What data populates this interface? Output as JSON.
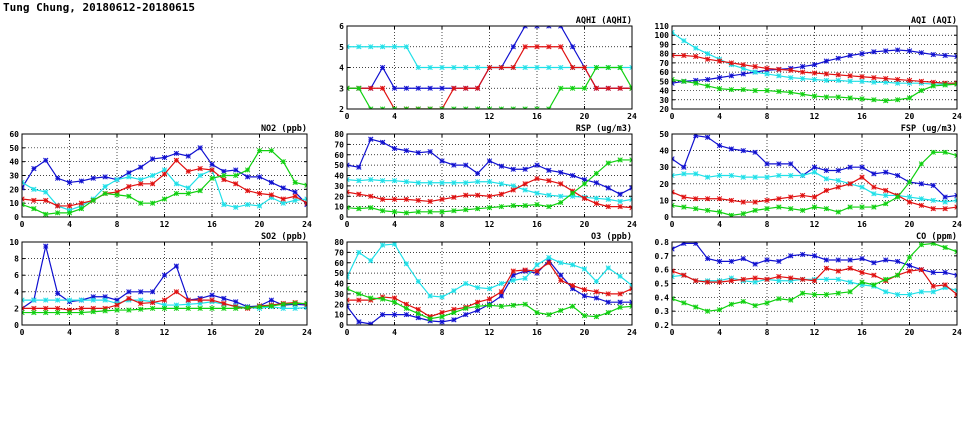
{
  "page": {
    "title": "Tung Chung, 20180612-20180615"
  },
  "series_colors": {
    "blue": "#1010d0",
    "cyan": "#20e0e8",
    "red": "#e01010",
    "green": "#10d010"
  },
  "chart_data": [
    {
      "id": "aqhi",
      "type": "line",
      "title": "AQHI (AQHI)",
      "xlim": [
        0,
        24
      ],
      "xticks": [
        0,
        4,
        8,
        12,
        16,
        20,
        24
      ],
      "ylim": [
        2,
        6
      ],
      "yticks": [
        2,
        3,
        4,
        5,
        6
      ],
      "series": [
        {
          "name": "blue",
          "values": [
            3,
            3,
            3,
            4,
            3,
            3,
            3,
            3,
            3,
            3,
            3,
            3,
            4,
            4,
            5,
            6,
            6,
            6,
            6,
            5,
            4,
            3,
            3,
            3,
            3
          ]
        },
        {
          "name": "cyan",
          "values": [
            5,
            5,
            5,
            5,
            5,
            5,
            4,
            4,
            4,
            4,
            4,
            4,
            4,
            4,
            4,
            4,
            4,
            4,
            4,
            4,
            4,
            4,
            4,
            4,
            4
          ]
        },
        {
          "name": "red",
          "values": [
            3,
            3,
            3,
            3,
            2,
            2,
            2,
            2,
            2,
            3,
            3,
            3,
            4,
            4,
            4,
            5,
            5,
            5,
            5,
            4,
            4,
            3,
            3,
            3,
            3
          ]
        },
        {
          "name": "green",
          "values": [
            3,
            3,
            2,
            2,
            2,
            2,
            2,
            2,
            2,
            2,
            2,
            2,
            2,
            2,
            2,
            2,
            2,
            2,
            3,
            3,
            3,
            4,
            4,
            4,
            3
          ]
        }
      ]
    },
    {
      "id": "aqi",
      "type": "line",
      "title": "AQI (AQI)",
      "xlim": [
        0,
        24
      ],
      "xticks": [
        0,
        4,
        8,
        12,
        16,
        20,
        24
      ],
      "ylim": [
        20,
        110
      ],
      "yticks": [
        20,
        30,
        40,
        50,
        60,
        70,
        80,
        90,
        100,
        110
      ],
      "series": [
        {
          "name": "blue",
          "values": [
            48,
            50,
            51,
            52,
            54,
            56,
            58,
            60,
            62,
            63,
            64,
            66,
            68,
            72,
            75,
            78,
            80,
            82,
            83,
            84,
            83,
            81,
            79,
            78,
            77
          ]
        },
        {
          "name": "cyan",
          "values": [
            103,
            94,
            86,
            80,
            74,
            68,
            64,
            60,
            58,
            56,
            54,
            53,
            52,
            51,
            51,
            50,
            50,
            49,
            49,
            48,
            48,
            48,
            47,
            47,
            47
          ]
        },
        {
          "name": "red",
          "values": [
            78,
            78,
            77,
            74,
            72,
            70,
            68,
            66,
            64,
            63,
            62,
            60,
            59,
            58,
            57,
            56,
            55,
            54,
            53,
            52,
            51,
            50,
            49,
            48,
            48
          ]
        },
        {
          "name": "green",
          "values": [
            52,
            50,
            48,
            45,
            42,
            41,
            41,
            40,
            40,
            39,
            38,
            36,
            34,
            33,
            33,
            32,
            31,
            30,
            29,
            30,
            32,
            40,
            45,
            46,
            47
          ]
        }
      ]
    },
    {
      "id": "no2",
      "type": "line",
      "title": "NO2 (ppb)",
      "xlim": [
        0,
        24
      ],
      "xticks": [
        0,
        4,
        8,
        12,
        16,
        20,
        24
      ],
      "ylim": [
        0,
        60
      ],
      "yticks": [
        0,
        10,
        20,
        30,
        40,
        50,
        60
      ],
      "series": [
        {
          "name": "blue",
          "values": [
            21,
            35,
            41,
            28,
            25,
            26,
            28,
            29,
            27,
            32,
            36,
            42,
            43,
            46,
            44,
            50,
            38,
            33,
            34,
            29,
            29,
            25,
            21,
            18,
            9
          ]
        },
        {
          "name": "cyan",
          "values": [
            25,
            20,
            18,
            8,
            5,
            8,
            13,
            22,
            27,
            29,
            27,
            30,
            34,
            24,
            21,
            30,
            34,
            9,
            7,
            9,
            8,
            14,
            10,
            12,
            13
          ]
        },
        {
          "name": "red",
          "values": [
            13,
            12,
            12,
            8,
            8,
            10,
            12,
            17,
            18,
            22,
            24,
            24,
            31,
            41,
            33,
            35,
            34,
            27,
            24,
            19,
            17,
            16,
            13,
            15,
            10
          ]
        },
        {
          "name": "green",
          "values": [
            9,
            6,
            2,
            3,
            3,
            6,
            12,
            17,
            16,
            15,
            10,
            10,
            13,
            17,
            17,
            19,
            28,
            30,
            30,
            34,
            48,
            48,
            40,
            25,
            23
          ]
        }
      ]
    },
    {
      "id": "rsp",
      "type": "line",
      "title": "RSP (ug/m3)",
      "xlim": [
        0,
        24
      ],
      "xticks": [
        0,
        4,
        8,
        12,
        16,
        20,
        24
      ],
      "ylim": [
        0,
        80
      ],
      "yticks": [
        0,
        10,
        20,
        30,
        40,
        50,
        60,
        70,
        80
      ],
      "series": [
        {
          "name": "blue",
          "values": [
            50,
            48,
            75,
            72,
            66,
            64,
            62,
            63,
            54,
            50,
            50,
            42,
            54,
            49,
            46,
            46,
            50,
            45,
            43,
            40,
            36,
            33,
            28,
            22,
            28
          ]
        },
        {
          "name": "cyan",
          "values": [
            36,
            35,
            36,
            35,
            35,
            34,
            33,
            33,
            33,
            33,
            33,
            34,
            34,
            32,
            30,
            26,
            23,
            21,
            20,
            20,
            19,
            18,
            17,
            15,
            17
          ]
        },
        {
          "name": "red",
          "values": [
            24,
            22,
            20,
            17,
            17,
            17,
            16,
            15,
            17,
            19,
            21,
            21,
            20,
            22,
            26,
            32,
            37,
            35,
            32,
            25,
            18,
            13,
            10,
            10,
            9
          ]
        },
        {
          "name": "green",
          "values": [
            9,
            8,
            9,
            6,
            5,
            4,
            5,
            5,
            5,
            6,
            7,
            8,
            9,
            10,
            11,
            11,
            12,
            10,
            14,
            23,
            32,
            42,
            52,
            55,
            55
          ]
        }
      ]
    },
    {
      "id": "fsp",
      "type": "line",
      "title": "FSP (ug/m3)",
      "xlim": [
        0,
        24
      ],
      "xticks": [
        0,
        4,
        8,
        12,
        16,
        20,
        24
      ],
      "ylim": [
        0,
        50
      ],
      "yticks": [
        0,
        10,
        20,
        30,
        40,
        50
      ],
      "series": [
        {
          "name": "blue",
          "values": [
            35,
            30,
            49,
            48,
            43,
            41,
            40,
            39,
            32,
            32,
            32,
            25,
            30,
            28,
            28,
            30,
            30,
            26,
            27,
            25,
            21,
            20,
            19,
            12,
            13
          ]
        },
        {
          "name": "cyan",
          "values": [
            25,
            26,
            26,
            24,
            25,
            25,
            24,
            24,
            24,
            25,
            25,
            25,
            27,
            23,
            22,
            20,
            18,
            14,
            13,
            13,
            12,
            11,
            10,
            9,
            10
          ]
        },
        {
          "name": "red",
          "values": [
            15,
            12,
            11,
            11,
            11,
            10,
            9,
            9,
            10,
            11,
            12,
            13,
            12,
            16,
            18,
            20,
            24,
            18,
            16,
            13,
            9,
            7,
            5,
            5,
            6
          ]
        },
        {
          "name": "green",
          "values": [
            7,
            6,
            5,
            4,
            3,
            1,
            2,
            4,
            5,
            6,
            5,
            4,
            6,
            5,
            3,
            6,
            6,
            6,
            8,
            12,
            21,
            32,
            39,
            39,
            37
          ]
        }
      ]
    },
    {
      "id": "so2",
      "type": "line",
      "title": "SO2 (ppb)",
      "xlim": [
        0,
        24
      ],
      "xticks": [
        0,
        4,
        8,
        12,
        16,
        20,
        24
      ],
      "ylim": [
        0,
        10
      ],
      "yticks": [
        0,
        2,
        4,
        6,
        8,
        10
      ],
      "series": [
        {
          "name": "blue",
          "values": [
            2,
            3,
            9.5,
            3.8,
            2.8,
            3,
            3.4,
            3.4,
            3,
            4,
            4,
            4,
            6,
            7.1,
            3,
            3.2,
            3.6,
            3.2,
            2.8,
            2.2,
            2.3,
            3,
            2.4,
            2.5,
            2.4
          ]
        },
        {
          "name": "cyan",
          "values": [
            3,
            3,
            3,
            3,
            3,
            3,
            3,
            3,
            2.6,
            3,
            3,
            2.8,
            2.4,
            2.4,
            2.5,
            2.6,
            2.8,
            2.5,
            2.3,
            2.1,
            2,
            2.2,
            2,
            2,
            2.1
          ]
        },
        {
          "name": "red",
          "values": [
            2,
            2,
            2,
            2,
            1.8,
            2,
            2,
            2,
            2.4,
            3.2,
            2.6,
            2.7,
            3,
            4,
            3,
            3,
            3,
            2.6,
            2.2,
            2,
            2.3,
            2.4,
            2.6,
            2.7,
            2.5
          ]
        },
        {
          "name": "green",
          "values": [
            1.5,
            1.5,
            1.5,
            1.5,
            1.5,
            1.5,
            1.6,
            1.7,
            1.8,
            1.8,
            1.9,
            2,
            2,
            2,
            2,
            2,
            2,
            2,
            2,
            2.1,
            2.2,
            2.3,
            2.5,
            2.6,
            2.6
          ]
        }
      ]
    },
    {
      "id": "o3",
      "type": "line",
      "title": "O3 (ppb)",
      "xlim": [
        0,
        24
      ],
      "xticks": [
        0,
        4,
        8,
        12,
        16,
        20,
        24
      ],
      "ylim": [
        0,
        80
      ],
      "yticks": [
        0,
        10,
        20,
        30,
        40,
        50,
        60,
        70,
        80
      ],
      "series": [
        {
          "name": "blue",
          "values": [
            18,
            3,
            1,
            10,
            10,
            10,
            7,
            4,
            3,
            5,
            10,
            14,
            20,
            28,
            48,
            52,
            50,
            62,
            48,
            35,
            28,
            26,
            22,
            22,
            22
          ]
        },
        {
          "name": "cyan",
          "values": [
            46,
            70,
            62,
            77,
            78,
            59,
            42,
            28,
            27,
            33,
            40,
            36,
            35,
            40,
            43,
            45,
            58,
            65,
            60,
            58,
            54,
            42,
            55,
            47,
            38
          ]
        },
        {
          "name": "red",
          "values": [
            24,
            24,
            24,
            27,
            26,
            20,
            15,
            8,
            12,
            15,
            17,
            22,
            25,
            32,
            52,
            53,
            52,
            60,
            43,
            38,
            34,
            32,
            30,
            30,
            35
          ]
        },
        {
          "name": "green",
          "values": [
            35,
            30,
            26,
            25,
            22,
            16,
            11,
            6,
            8,
            12,
            16,
            18,
            19,
            18,
            19,
            20,
            12,
            10,
            14,
            18,
            9,
            8,
            12,
            17,
            18
          ]
        }
      ]
    },
    {
      "id": "co",
      "type": "line",
      "title": "CO (ppm)",
      "xlim": [
        0,
        24
      ],
      "xticks": [
        0,
        4,
        8,
        12,
        16,
        20,
        24
      ],
      "ylim": [
        0.2,
        0.8
      ],
      "yticks": [
        0.2,
        0.3,
        0.4,
        0.5,
        0.6,
        0.7,
        0.8
      ],
      "series": [
        {
          "name": "blue",
          "values": [
            0.75,
            0.79,
            0.79,
            0.68,
            0.66,
            0.66,
            0.68,
            0.64,
            0.67,
            0.66,
            0.7,
            0.71,
            0.7,
            0.67,
            0.67,
            0.67,
            0.68,
            0.65,
            0.67,
            0.66,
            0.63,
            0.6,
            0.58,
            0.58,
            0.56
          ]
        },
        {
          "name": "cyan",
          "values": [
            0.55,
            0.56,
            0.52,
            0.52,
            0.52,
            0.54,
            0.52,
            0.51,
            0.53,
            0.52,
            0.52,
            0.53,
            0.53,
            0.53,
            0.53,
            0.51,
            0.49,
            0.48,
            0.44,
            0.42,
            0.42,
            0.44,
            0.44,
            0.47,
            0.45
          ]
        },
        {
          "name": "red",
          "values": [
            0.59,
            0.56,
            0.52,
            0.51,
            0.51,
            0.52,
            0.53,
            0.54,
            0.53,
            0.55,
            0.54,
            0.53,
            0.52,
            0.61,
            0.59,
            0.61,
            0.58,
            0.56,
            0.52,
            0.56,
            0.59,
            0.6,
            0.48,
            0.49,
            0.42
          ]
        },
        {
          "name": "green",
          "values": [
            0.39,
            0.36,
            0.33,
            0.3,
            0.31,
            0.35,
            0.37,
            0.34,
            0.36,
            0.39,
            0.38,
            0.43,
            0.42,
            0.42,
            0.43,
            0.44,
            0.51,
            0.49,
            0.53,
            0.56,
            0.69,
            0.78,
            0.79,
            0.76,
            0.73
          ]
        }
      ]
    }
  ]
}
